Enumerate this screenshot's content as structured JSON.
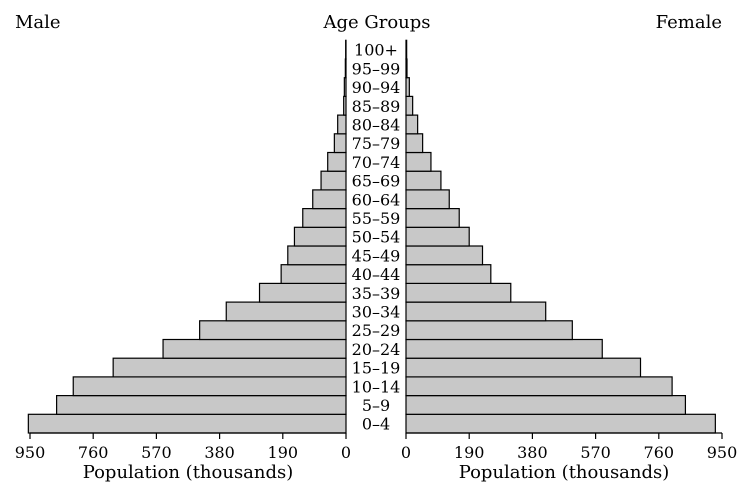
{
  "chart_data": {
    "type": "bar",
    "subtype": "population-pyramid",
    "orientation": "horizontal",
    "center_label": "Age Groups",
    "categories": [
      "0–4",
      "5–9",
      "10–14",
      "15–19",
      "20–24",
      "25–29",
      "30–34",
      "35–39",
      "40–44",
      "45–49",
      "50–54",
      "55–59",
      "60–64",
      "65–69",
      "70–74",
      "75–79",
      "80–84",
      "85–89",
      "90–94",
      "95–99",
      "100+"
    ],
    "series": [
      {
        "name": "Male",
        "side": "left",
        "values": [
          955,
          870,
          820,
          700,
          550,
          440,
          360,
          260,
          195,
          175,
          155,
          130,
          100,
          75,
          55,
          35,
          25,
          7,
          5,
          2,
          1
        ]
      },
      {
        "name": "Female",
        "side": "right",
        "values": [
          930,
          840,
          800,
          705,
          590,
          500,
          420,
          315,
          255,
          230,
          190,
          160,
          130,
          105,
          75,
          50,
          35,
          20,
          10,
          3,
          2
        ]
      }
    ],
    "xlim": [
      0,
      950
    ],
    "ticks": [
      "950",
      "760",
      "570",
      "380",
      "190",
      "0"
    ],
    "ticks_right": [
      "0",
      "190",
      "380",
      "570",
      "760",
      "950"
    ],
    "xlabel": "Population (thousands)",
    "bar_color": "#c8c8c8",
    "bar_stroke": "#000000",
    "grid": false
  }
}
